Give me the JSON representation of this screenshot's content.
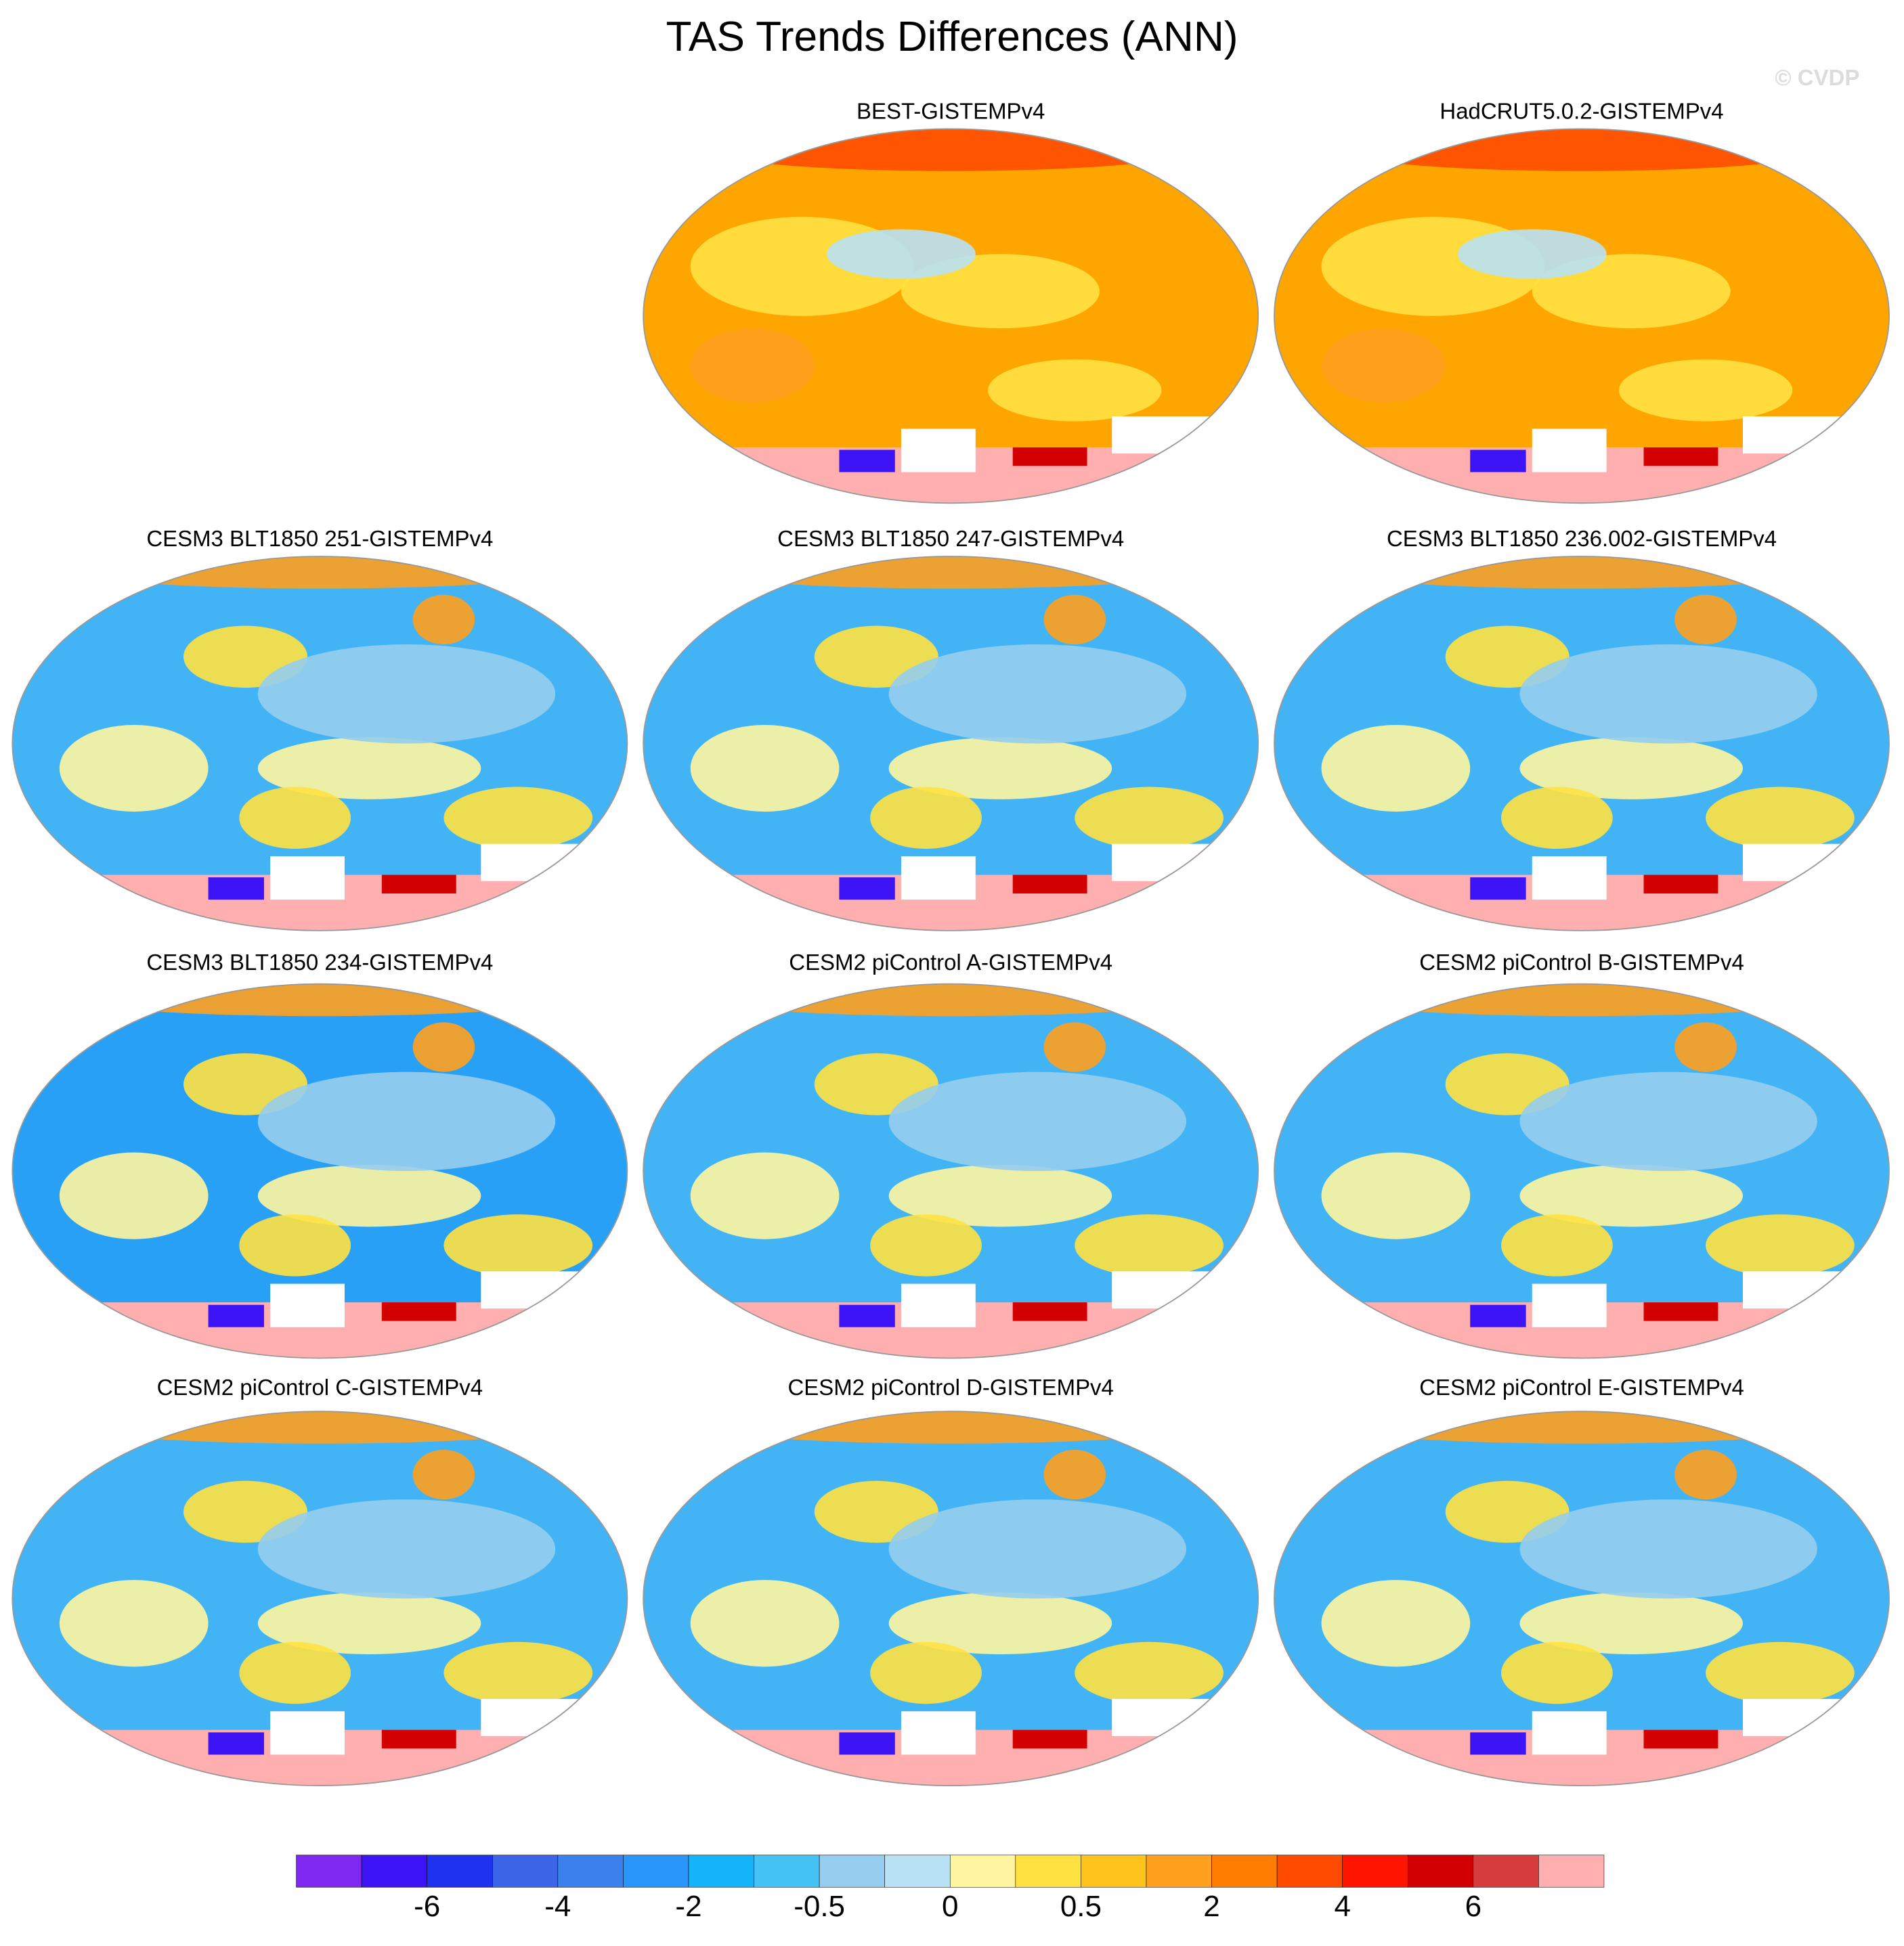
{
  "title": "TAS Trends Differences (ANN)",
  "watermark": "© CVDP",
  "panels": [
    {
      "title": "BEST-GISTEMPv4",
      "color": "#ffa500"
    },
    {
      "title": "HadCRUT5.0.2-GISTEMPv4",
      "color": "#ffa500"
    },
    {
      "title": "CESM3 BLT1850 251-GISTEMPv4",
      "color": "#42b4f5"
    },
    {
      "title": "CESM3 BLT1850 247-GISTEMPv4",
      "color": "#42b4f5"
    },
    {
      "title": "CESM3 BLT1850 236.002-GISTEMPv4",
      "color": "#42b4f5"
    },
    {
      "title": "CESM3 BLT1850 234-GISTEMPv4",
      "color": "#28a0f5"
    },
    {
      "title": "CESM2 piControl A-GISTEMPv4",
      "color": "#42b4f5"
    },
    {
      "title": "CESM2 piControl B-GISTEMPv4",
      "color": "#42b4f5"
    },
    {
      "title": "CESM2 piControl C-GISTEMPv4",
      "color": "#42b4f5"
    },
    {
      "title": "CESM2 piControl D-GISTEMPv4",
      "color": "#42b4f5"
    },
    {
      "title": "CESM2 piControl E-GISTEMPv4",
      "color": "#42b4f5"
    }
  ],
  "colorbar": {
    "colors": [
      "#7f28f0",
      "#3c14f5",
      "#1e32f0",
      "#3c64e6",
      "#3c80ee",
      "#2896fa",
      "#14b4fa",
      "#46c3f5",
      "#96cdee",
      "#b9e1f5",
      "#fff5a0",
      "#ffe141",
      "#ffc31e",
      "#ffa01e",
      "#ff7d00",
      "#ff4b00",
      "#ff1400",
      "#d20000",
      "#d73c3c",
      "#ffafaf"
    ],
    "ticks": [
      -6,
      -4,
      -2,
      -0.5,
      0,
      0.5,
      2,
      4,
      6
    ]
  }
}
